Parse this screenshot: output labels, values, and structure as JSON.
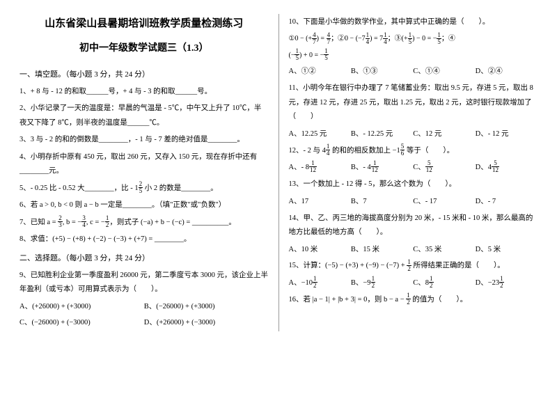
{
  "title1": "山东省梁山县暑期培训班教学质量检测练习",
  "title2": "初中一年级数学试题三（1.3）",
  "section1": "一、填空题。（每小题 3 分，共 24 分）",
  "section2": "二、选择题。（每小题 3 分，共 24 分）",
  "left": {
    "q1": "1、+ 8 与 - 12 的和取______号，+ 4 与 - 3 的和取______号。",
    "q2": "2、小华记录了一天的温度是：早晨的气温是 - 5℃，中午又上升了 10℃，半夜又下降了 8℃，则半夜的温度是______℃。",
    "q3": "3、3 与 - 2 的和的倒数是________，- 1 与 - 7 差的绝对值是________。",
    "q4": "4、小明存折中原有 450 元，取出 260 元，又存入 150 元，现在存折中还有________元。",
    "q5a": "5、- 0.25 比 - 0.52 大________，比 - ",
    "q5b": " 小 2 的数是________。",
    "q6": "6、若 a > 0, b < 0  则 a − b 一定是________。（填\"正数\"或\"负数\"）",
    "q7a": "7、已知 ",
    "q7b": "，则式子 (−a) + b − (−c) = __________。",
    "q8": "8、求值：(+5) − (+8) + (−2) − (−3) + (+7) = ________。",
    "q9": "9、已知胜利企业第一季度盈利 26000 元，第二季度亏本 3000 元，该企业上半年盈利（或亏本）可用算式表示为（　　）。",
    "q9a": "A、(+26000) + (+3000)",
    "q9b": "B、(−26000) + (+3000)",
    "q9c": "C、(−26000) + (−3000)",
    "q9d": "D、(+26000) + (−3000)"
  },
  "right": {
    "q10": "10、下面是小华做的数学作业，其中算式中正确的是（　　）。",
    "q10opts": {
      "a": "A、①②",
      "b": "B、①③",
      "c": "C、①④",
      "d": "D、②④"
    },
    "q11": "11、小明今年在银行中办理了 7 笔储蓄业务：取出 9.5 元，存进 5 元，取出 8 元，存进 12 元，存进 25 元，取出 1.25 元，取出 2 元，这时银行现款增加了（　　）",
    "q11opts": {
      "a": "A、12.25 元",
      "b": "B、- 12.25 元",
      "c": "C、12 元",
      "d": "D、- 12 元"
    },
    "q12a": "12、- 2 与 ",
    "q12b": " 的和的相反数加上 ",
    "q12c": " 等于（　　）。",
    "q13": "13、一个数加上 - 12 得 - 5，那么这个数为（　　）。",
    "q13opts": {
      "a": "A、17",
      "b": "B、7",
      "c": "C、- 17",
      "d": "D、- 7"
    },
    "q14": "14、甲、乙、丙三地的海拔高度分别为 20 米，- 15 米和 - 10 米，那么最高的地方比最低的地方高（　　）。",
    "q14opts": {
      "a": "A、10 米",
      "b": "B、15 米",
      "c": "C、35 米",
      "d": "D、5 米"
    },
    "q15a": "15、计算：(−5) − (+3) + (−9) − (−7) + ",
    "q15b": " 所得结果正确的是（　　）。",
    "q16a": "16、若 |a − 1| + |b + 3| = 0，则 b − a − ",
    "q16b": " 的值为（　　）。"
  }
}
